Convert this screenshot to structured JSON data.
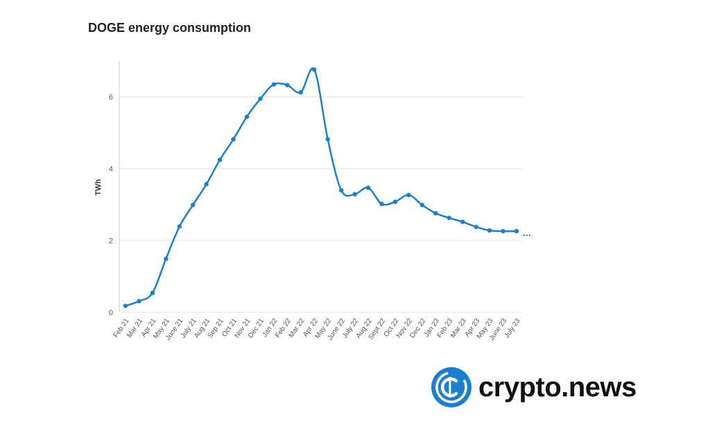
{
  "colors": {
    "line": "#1a7fd0",
    "grid": "#e6e6e6",
    "axis_text": "#555555",
    "brand": "#1a7fd0"
  },
  "logo": {
    "text": "crypto.news",
    "icon": "crypto-news-logo-icon"
  },
  "chart_data": {
    "type": "line",
    "title": "DOGE energy consumption",
    "xlabel": "",
    "ylabel": "TWh",
    "ylim": [
      0,
      7
    ],
    "yticks": [
      0,
      2,
      4,
      6
    ],
    "grid": true,
    "continuation_marker": "...",
    "categories": [
      "Feb 21",
      "Mar 21",
      "Apr 21",
      "May 21",
      "June 21",
      "July 21",
      "Aug 21",
      "Sep 21",
      "Oct 21",
      "Nov 21",
      "Dec 21",
      "Jan 22",
      "Feb 22",
      "Mar 22",
      "Apr 22",
      "May 22",
      "June 22",
      "July 22",
      "Aug 22",
      "Sept 22",
      "Oct 22",
      "Nov 22",
      "Dec 22",
      "Jan 23",
      "Feb 23",
      "Mar 23",
      "Apr 23",
      "May 23",
      "June 23",
      "July 23"
    ],
    "series": [
      {
        "name": "DOGE energy consumption",
        "values": [
          0.18,
          0.31,
          0.54,
          1.49,
          2.39,
          2.99,
          3.57,
          4.25,
          4.82,
          5.45,
          5.95,
          6.35,
          6.33,
          6.13,
          6.76,
          4.82,
          3.4,
          3.29,
          3.47,
          3.02,
          3.08,
          3.27,
          2.99,
          2.76,
          2.63,
          2.52,
          2.38,
          2.28,
          2.26,
          2.26
        ]
      }
    ]
  }
}
